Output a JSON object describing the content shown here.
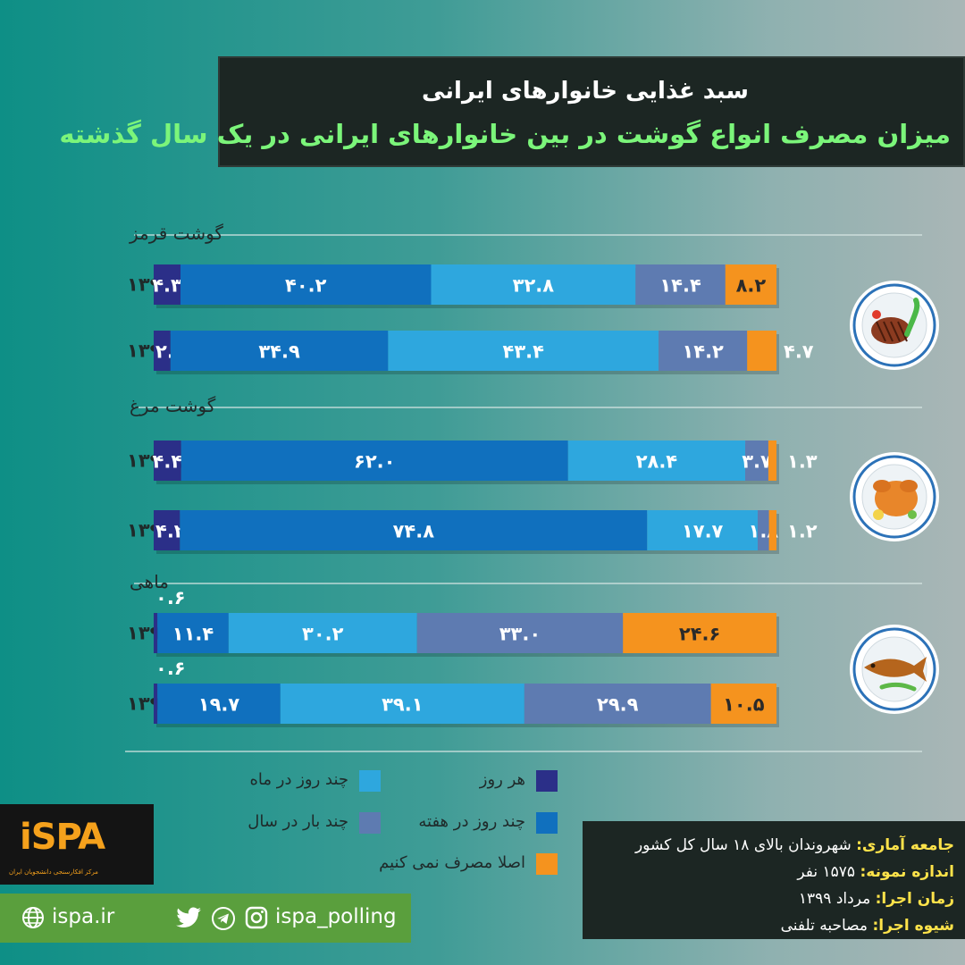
{
  "header": {
    "title": "سبد غذایی خانوارهای ایرانی",
    "subtitle": "میزان مصرف انواع گوشت در بین خانوارهای ایرانی در یک سال گذشته"
  },
  "colors": {
    "daily": "#2b2f88",
    "weekly": "#1070be",
    "monthly": "#2ea7de",
    "yearly": "#5e7bb1",
    "never": "#f5931e"
  },
  "chart_data": {
    "type": "bar",
    "orientation": "horizontal-stacked",
    "series_order": [
      "daily",
      "weekly",
      "monthly",
      "yearly",
      "never"
    ],
    "groups": [
      {
        "name": "گوشت قرمز",
        "icon": "steak-plate-icon",
        "rows": [
          {
            "label": "سال ۱۳۹۹",
            "values": [
              4.3,
              40.2,
              32.8,
              14.4,
              8.2
            ],
            "display": [
              "۴.۳",
              "۴۰.۲",
              "۳۲.۸",
              "۱۴.۴",
              "۸.۲"
            ]
          },
          {
            "label": "سال ۱۳۹۸",
            "values": [
              2.7,
              34.9,
              43.4,
              14.2,
              4.7
            ],
            "display": [
              "۲.۷",
              "۳۴.۹",
              "۴۳.۴",
              "۱۴.۲",
              "۴.۷"
            ]
          }
        ]
      },
      {
        "name": "گوشت مرغ",
        "icon": "roast-chicken-plate-icon",
        "rows": [
          {
            "label": "سال ۱۳۹۹",
            "values": [
              4.4,
              62.0,
              28.4,
              3.7,
              1.3
            ],
            "display": [
              "۴.۴",
              "۶۲.۰",
              "۲۸.۴",
              "۳.۷",
              "۱.۳"
            ]
          },
          {
            "label": "سال ۱۳۹۸",
            "values": [
              4.2,
              74.8,
              17.7,
              1.8,
              1.2
            ],
            "display": [
              "۴.۲",
              "۷۴.۸",
              "۱۷.۷",
              "۱.۸",
              "۱.۲"
            ]
          }
        ]
      },
      {
        "name": "ماهی",
        "icon": "fish-plate-icon",
        "rows": [
          {
            "label": "سال ۱۳۹۹",
            "values": [
              0.6,
              11.4,
              30.2,
              33.0,
              24.6
            ],
            "display": [
              "۰.۶",
              "۱۱.۴",
              "۳۰.۲",
              "۳۳.۰",
              "۲۴.۶"
            ]
          },
          {
            "label": "سال ۱۳۹۸",
            "values": [
              0.6,
              19.7,
              39.1,
              29.9,
              10.5
            ],
            "display": [
              "۰.۶",
              "۱۹.۷",
              "۳۹.۱",
              "۲۹.۹",
              "۱۰.۵"
            ]
          }
        ]
      }
    ],
    "legend": [
      {
        "key": "daily",
        "label": "هر روز"
      },
      {
        "key": "monthly",
        "label": "چند روز در ماه"
      },
      {
        "key": "weekly",
        "label": "چند روز در هفته"
      },
      {
        "key": "yearly",
        "label": "چند بار در سال"
      },
      {
        "key": "never",
        "label": "اصلا مصرف نمی کنیم"
      }
    ]
  },
  "info": {
    "population_key": "جامعه آماری:",
    "population_val": "شهروندان بالای ۱۸ سال کل کشور",
    "sample_key": "اندازه نمونه:",
    "sample_val": "۱۵۷۵ نفر",
    "time_key": "زمان اجرا:",
    "time_val": "مرداد ۱۳۹۹",
    "method_key": "شیوه اجرا:",
    "method_val": "مصاحبه تلفنی"
  },
  "brand": {
    "logo": "iSPA",
    "logo_sub": "مرکز افکارسنجی دانشجویان ایران",
    "website": "ispa.ir",
    "handle": "ispa_polling"
  }
}
